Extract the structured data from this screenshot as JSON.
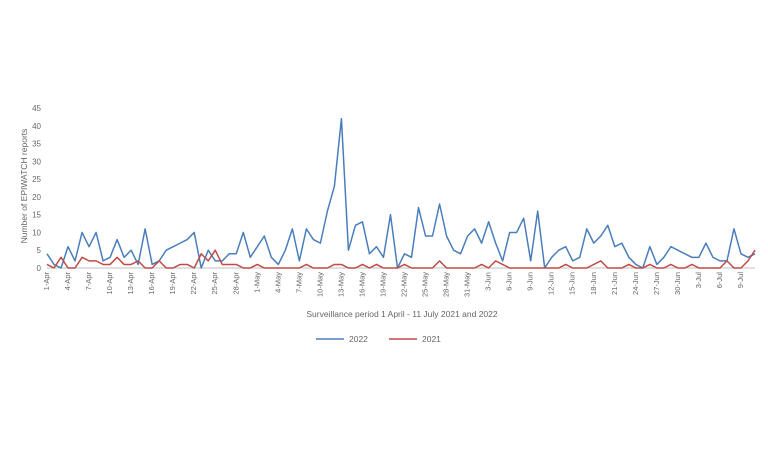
{
  "chart_data": {
    "type": "line",
    "title": "",
    "xlabel": "Surveillance period 1 April - 11 July 2021 and 2022",
    "ylabel": "Number of EPIWATCH reports",
    "ylim": [
      0,
      45
    ],
    "yticks": [
      0,
      5,
      10,
      15,
      20,
      25,
      30,
      35,
      40,
      45
    ],
    "grid": false,
    "legend_position": "bottom",
    "x": [
      "1-Apr",
      "2-Apr",
      "3-Apr",
      "4-Apr",
      "5-Apr",
      "6-Apr",
      "7-Apr",
      "8-Apr",
      "9-Apr",
      "10-Apr",
      "11-Apr",
      "12-Apr",
      "13-Apr",
      "14-Apr",
      "15-Apr",
      "16-Apr",
      "17-Apr",
      "18-Apr",
      "19-Apr",
      "20-Apr",
      "21-Apr",
      "22-Apr",
      "23-Apr",
      "24-Apr",
      "25-Apr",
      "26-Apr",
      "27-Apr",
      "28-Apr",
      "29-Apr",
      "30-Apr",
      "1-May",
      "2-May",
      "3-May",
      "4-May",
      "5-May",
      "6-May",
      "7-May",
      "8-May",
      "9-May",
      "10-May",
      "11-May",
      "12-May",
      "13-May",
      "14-May",
      "15-May",
      "16-May",
      "17-May",
      "18-May",
      "19-May",
      "20-May",
      "21-May",
      "22-May",
      "23-May",
      "24-May",
      "25-May",
      "26-May",
      "27-May",
      "28-May",
      "29-May",
      "30-May",
      "31-May",
      "1-Jun",
      "2-Jun",
      "3-Jun",
      "4-Jun",
      "5-Jun",
      "6-Jun",
      "7-Jun",
      "8-Jun",
      "9-Jun",
      "10-Jun",
      "11-Jun",
      "12-Jun",
      "13-Jun",
      "14-Jun",
      "15-Jun",
      "16-Jun",
      "17-Jun",
      "18-Jun",
      "19-Jun",
      "20-Jun",
      "21-Jun",
      "22-Jun",
      "23-Jun",
      "24-Jun",
      "25-Jun",
      "26-Jun",
      "27-Jun",
      "28-Jun",
      "29-Jun",
      "30-Jun",
      "1-Jul",
      "2-Jul",
      "3-Jul",
      "4-Jul",
      "5-Jul",
      "6-Jul",
      "7-Jul",
      "8-Jul",
      "9-Jul",
      "10-Jul",
      "11-Jul"
    ],
    "xtick_labels": [
      "1-Apr",
      "4-Apr",
      "7-Apr",
      "10-Apr",
      "13-Apr",
      "16-Apr",
      "19-Apr",
      "22-Apr",
      "25-Apr",
      "28-Apr",
      "1-May",
      "4-May",
      "7-May",
      "10-May",
      "13-May",
      "16-May",
      "19-May",
      "22-May",
      "25-May",
      "28-May",
      "31-May",
      "3-Jun",
      "6-Jun",
      "9-Jun",
      "12-Jun",
      "15-Jun",
      "18-Jun",
      "21-Jun",
      "24-Jun",
      "27-Jun",
      "30-Jun",
      "3-Jul",
      "6-Jul",
      "9-Jul"
    ],
    "series": [
      {
        "name": "2022",
        "color": "#4a7ebb",
        "values": [
          4,
          1,
          0,
          6,
          2,
          10,
          6,
          10,
          2,
          3,
          8,
          3,
          5,
          1,
          11,
          1,
          2,
          5,
          6,
          7,
          8,
          10,
          0,
          5,
          2,
          2,
          4,
          4,
          10,
          3,
          6,
          9,
          3,
          1,
          5,
          11,
          2,
          11,
          8,
          7,
          16,
          23,
          42,
          5,
          12,
          13,
          4,
          6,
          3,
          15,
          0,
          4,
          3,
          17,
          9,
          9,
          18,
          9,
          5,
          4,
          9,
          11,
          7,
          13,
          7,
          2,
          10,
          10,
          14,
          2,
          16,
          0,
          3,
          5,
          6,
          2,
          3,
          11,
          7,
          9,
          12,
          6,
          7,
          3,
          1,
          0,
          6,
          1,
          3,
          6,
          5,
          4,
          3,
          3,
          7,
          3,
          2,
          2,
          11,
          4,
          3,
          4
        ]
      },
      {
        "name": "2021",
        "color": "#be4b48",
        "values": [
          1,
          0,
          3,
          0,
          0,
          3,
          2,
          2,
          1,
          1,
          3,
          1,
          1,
          2,
          0,
          0,
          2,
          0,
          0,
          1,
          1,
          0,
          4,
          2,
          5,
          1,
          1,
          1,
          0,
          0,
          1,
          0,
          0,
          0,
          0,
          0,
          0,
          1,
          0,
          0,
          0,
          1,
          1,
          0,
          0,
          1,
          0,
          1,
          0,
          0,
          0,
          1,
          0,
          0,
          0,
          0,
          2,
          0,
          0,
          0,
          0,
          0,
          1,
          0,
          2,
          1,
          0,
          0,
          0,
          0,
          0,
          0,
          0,
          0,
          1,
          0,
          0,
          0,
          1,
          2,
          0,
          0,
          0,
          1,
          0,
          0,
          1,
          0,
          0,
          1,
          0,
          0,
          1,
          0,
          0,
          0,
          0,
          2,
          0,
          0,
          2,
          5
        ]
      }
    ]
  }
}
